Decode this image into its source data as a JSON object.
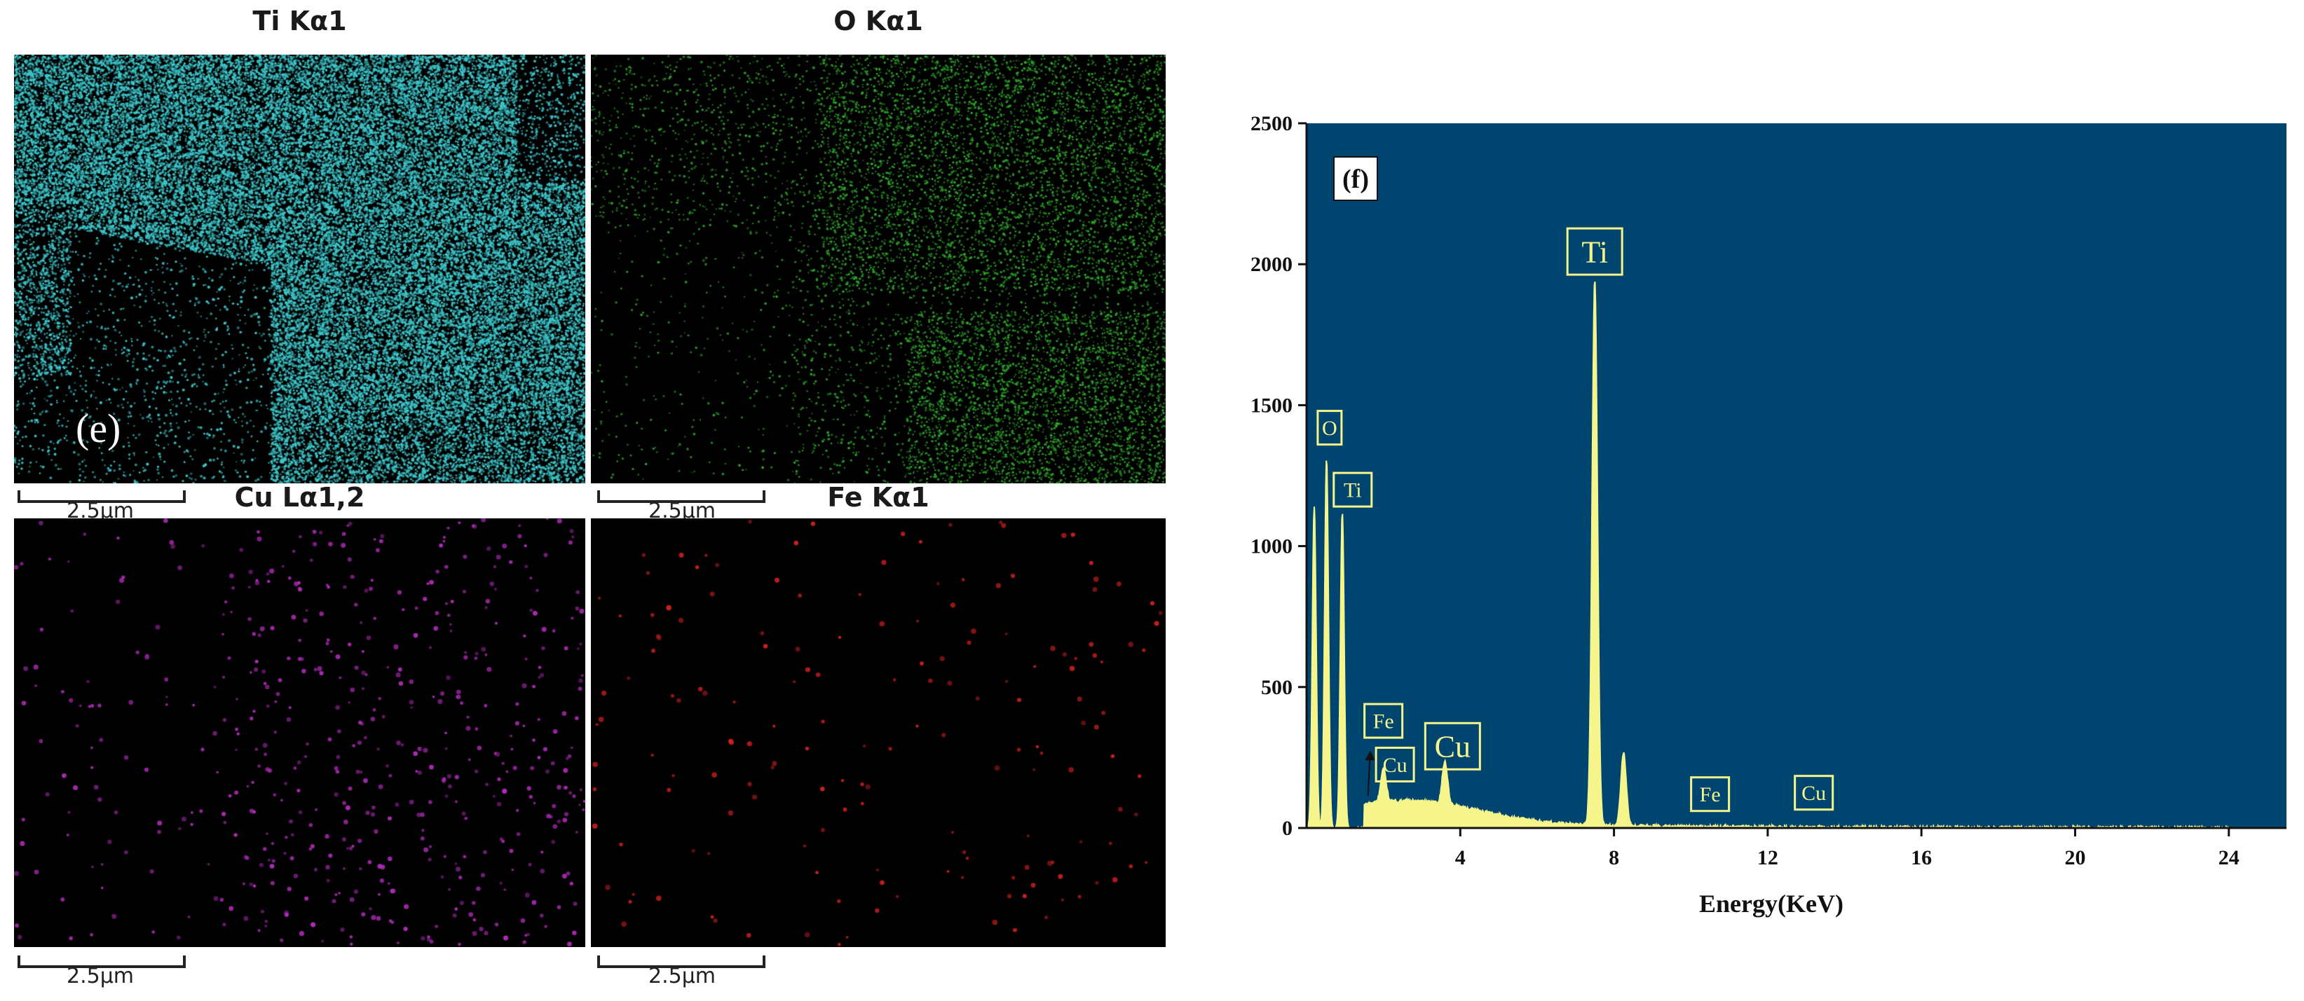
{
  "maps": [
    {
      "title": "Ti Kα1",
      "color": "#3ec8cc",
      "scale_label": "2.5μm"
    },
    {
      "title": "O Kα1",
      "color": "#2fa82b",
      "scale_label": "2.5μm"
    },
    {
      "title": "Cu Lα1,2",
      "color": "#b02ab8",
      "scale_label": "2.5μm"
    },
    {
      "title": "Fe Kα1",
      "color": "#d01f1f",
      "scale_label": "2.5μm"
    }
  ],
  "panel_e_label": "(e)",
  "chart_data": {
    "type": "line",
    "panel_label": "(f)",
    "xlabel": "Energy(KeV)",
    "ylabel": "",
    "xlim": [
      0,
      25.5
    ],
    "ylim": [
      0,
      2500
    ],
    "xticks": [
      4,
      8,
      12,
      16,
      20,
      24
    ],
    "yticks": [
      0,
      500,
      1000,
      1500,
      2000,
      2500
    ],
    "background_color": "#004570",
    "series_color": "#f5f58c",
    "peaks": [
      {
        "x": 0.2,
        "y": 1140
      },
      {
        "x": 0.52,
        "y": 1310
      },
      {
        "x": 0.93,
        "y": 1120
      },
      {
        "x": 7.5,
        "y": 1930
      },
      {
        "x": 8.25,
        "y": 260
      },
      {
        "x": 3.6,
        "y": 150
      },
      {
        "x": 2.0,
        "y": 120
      }
    ],
    "annotations": [
      {
        "text": "Ti",
        "x": 7.5,
        "y": 2045,
        "size": "large"
      },
      {
        "text": "O",
        "x": 0.6,
        "y": 1420,
        "size": "small"
      },
      {
        "text": "Ti",
        "x": 1.2,
        "y": 1200,
        "size": "small"
      },
      {
        "text": "Fe",
        "x": 2.0,
        "y": 380,
        "size": "small"
      },
      {
        "text": "Cu",
        "x": 2.3,
        "y": 225,
        "size": "small"
      },
      {
        "text": "Cu",
        "x": 3.8,
        "y": 290,
        "size": "large"
      },
      {
        "text": "Fe",
        "x": 10.5,
        "y": 120,
        "size": "small"
      },
      {
        "text": "Cu",
        "x": 13.2,
        "y": 125,
        "size": "small"
      }
    ]
  }
}
